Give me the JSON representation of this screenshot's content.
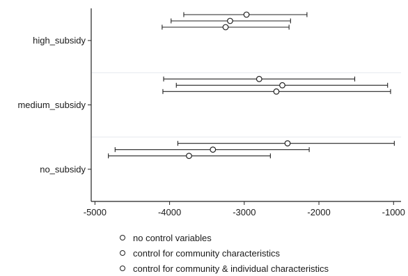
{
  "chart_data": {
    "type": "scatter",
    "subtype": "coefficient-plot-with-confidence-intervals",
    "orientation": "horizontal",
    "title": "",
    "xlabel": "",
    "ylabel": "",
    "xlim": [
      -5050,
      -900
    ],
    "xticks": [
      -5000,
      -4000,
      -3000,
      -2000,
      -1000
    ],
    "xtick_labels": [
      "-5000",
      "-4000",
      "-3000",
      "-2000",
      "-1000"
    ],
    "categories": [
      "high_subsidy",
      "medium_subsidy",
      "no_subsidy"
    ],
    "grid": "horizontal separators between categories",
    "legend_position": "bottom",
    "series": [
      {
        "name": "no control variables",
        "estimates": [
          -2970,
          -2800,
          -2420
        ],
        "ci_low": [
          -3810,
          -4080,
          -3890
        ],
        "ci_high": [
          -2160,
          -1520,
          -990
        ]
      },
      {
        "name": "control for community characteristics",
        "estimates": [
          -3190,
          -2490,
          -3420
        ],
        "ci_low": [
          -3980,
          -3910,
          -4730
        ],
        "ci_high": [
          -2380,
          -1080,
          -2130
        ]
      },
      {
        "name": "control for community & individual characteristics",
        "estimates": [
          -3250,
          -2570,
          -3740
        ],
        "ci_low": [
          -4100,
          -4090,
          -4820
        ],
        "ci_high": [
          -2400,
          -1040,
          -2650
        ]
      }
    ]
  },
  "colors": {
    "mark": "#222222",
    "separator": "#e6eaee",
    "background": "#ffffff"
  }
}
